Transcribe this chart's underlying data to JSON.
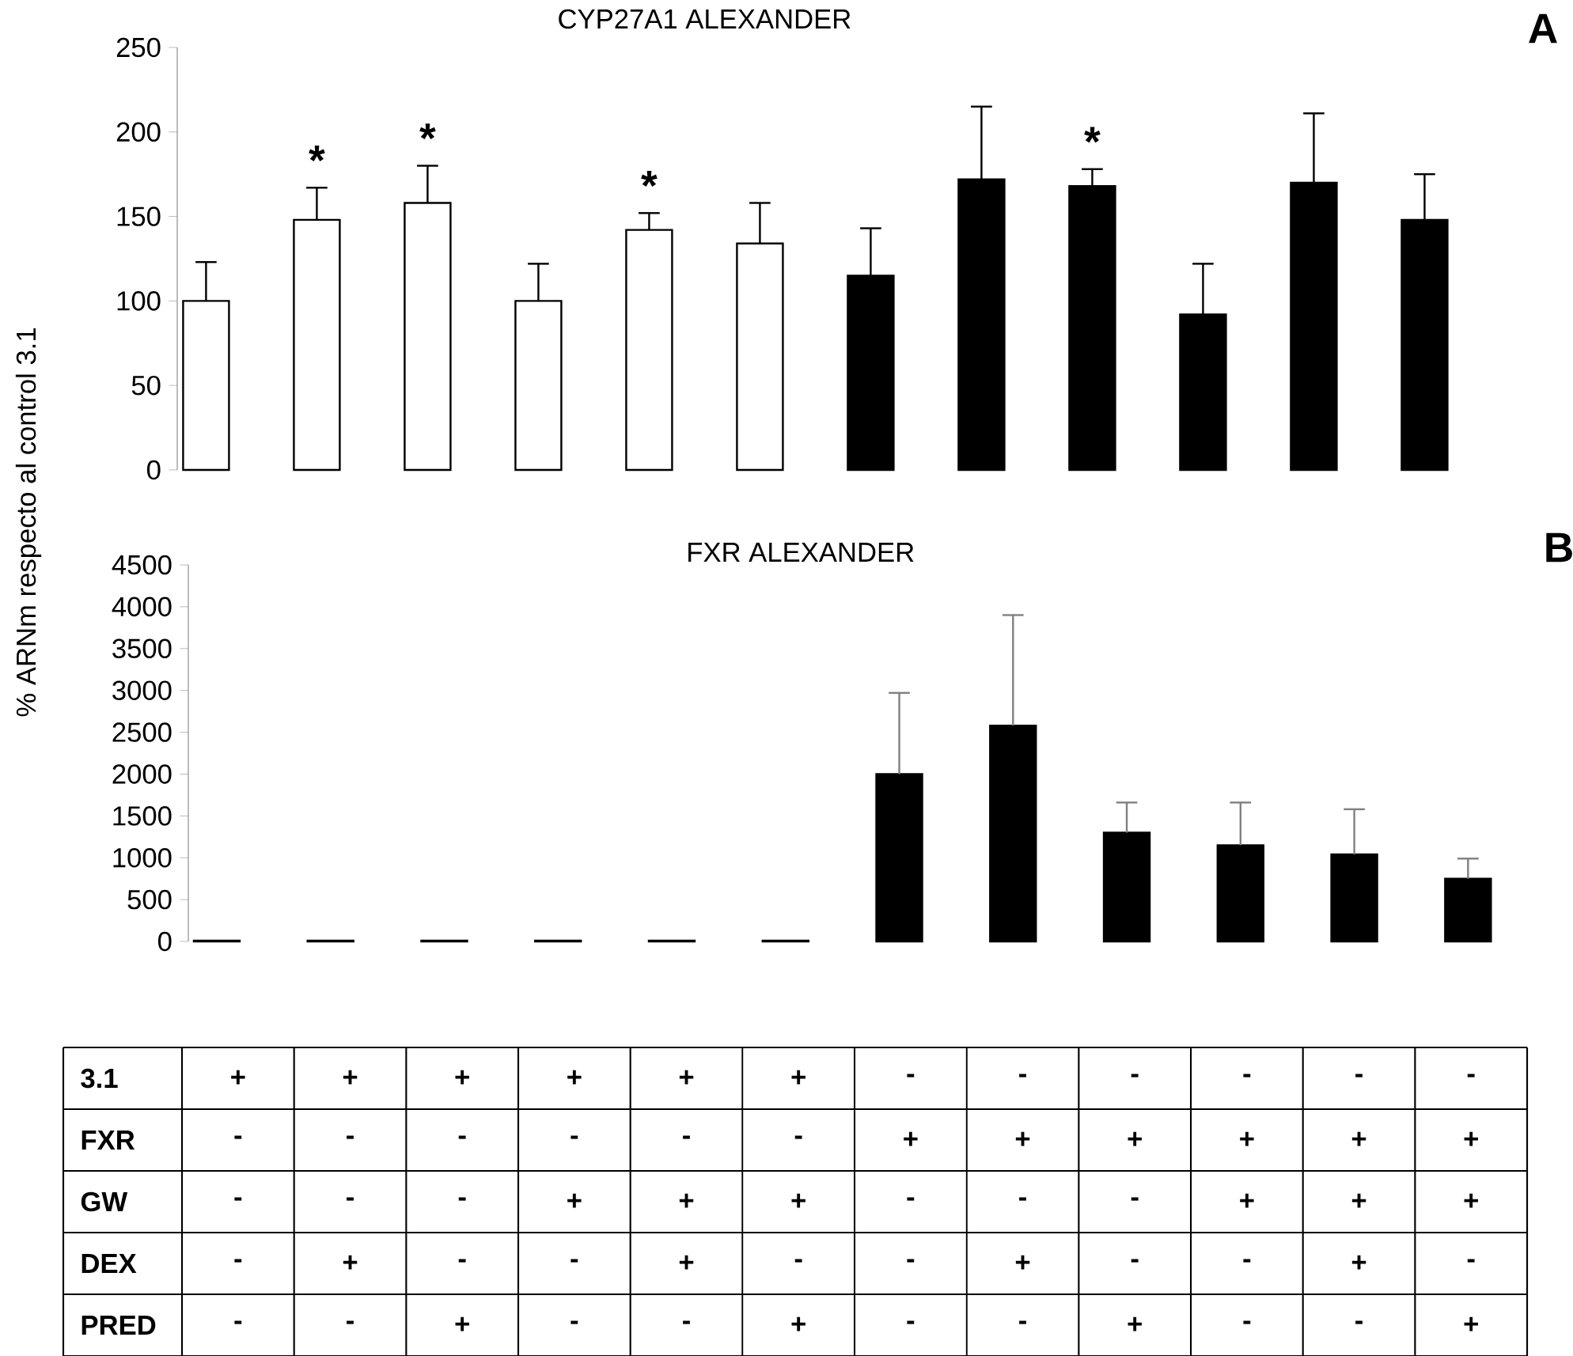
{
  "chart_data": [
    {
      "type": "bar",
      "title": "CYP27A1 ALEXANDER",
      "ylabel": "% ARNm respecto al control 3.1",
      "categories": [
        null,
        null,
        null,
        null,
        null,
        null,
        null,
        null,
        null,
        null,
        null,
        null
      ],
      "values": [
        100,
        148,
        158,
        100,
        142,
        134,
        115,
        172,
        168,
        92,
        170,
        148
      ],
      "errors": [
        [
          100,
          123
        ],
        [
          148,
          167
        ],
        [
          158,
          180
        ],
        [
          100,
          122
        ],
        [
          142,
          152
        ],
        [
          134,
          158
        ],
        [
          115,
          143
        ],
        [
          172,
          215
        ],
        [
          168,
          178
        ],
        [
          92,
          122
        ],
        [
          170,
          211
        ],
        [
          148,
          175
        ]
      ],
      "value_labels": [
        null,
        "*",
        "*",
        null,
        "*",
        null,
        null,
        null,
        "*",
        null,
        null,
        null
      ],
      "colors": [
        "#ffffff",
        "#ffffff",
        "#ffffff",
        "#ffffff",
        "#ffffff",
        "#ffffff",
        "#000000",
        "#000000",
        "#000000",
        "#000000",
        "#000000",
        "#000000"
      ],
      "ylim": [
        0,
        250
      ],
      "yticks": [
        0,
        50,
        100,
        150,
        200,
        250
      ],
      "grid": false,
      "tick_labels": "y",
      "annotations": [
        "A"
      ]
    },
    {
      "type": "bar",
      "title": "FXR ALEXANDER",
      "categories": [
        null,
        null,
        null,
        null,
        null,
        null,
        null,
        null,
        null,
        null,
        null,
        null
      ],
      "values": [
        10,
        10,
        10,
        10,
        10,
        10,
        2000,
        2580,
        1300,
        1150,
        1040,
        750
      ],
      "errors": [
        null,
        null,
        null,
        null,
        null,
        null,
        [
          2000,
          2970
        ],
        [
          2580,
          3900
        ],
        [
          1300,
          1660
        ],
        [
          1150,
          1660
        ],
        [
          1040,
          1580
        ],
        [
          750,
          990
        ]
      ],
      "colors": [
        "#ffffff",
        "#ffffff",
        "#ffffff",
        "#ffffff",
        "#ffffff",
        "#ffffff",
        "#000000",
        "#000000",
        "#000000",
        "#000000",
        "#000000",
        "#000000"
      ],
      "ylim": [
        0,
        4500
      ],
      "yticks": [
        0,
        500,
        1000,
        1500,
        2000,
        2500,
        3000,
        3500,
        4000,
        4500
      ],
      "grid": false,
      "tick_labels": "y",
      "annotations": [
        "B"
      ]
    },
    {
      "type": "other",
      "annotations": [
        "3.1",
        "+",
        "+",
        "+",
        "+",
        "+",
        "+",
        "-",
        "-",
        "-",
        "-",
        "-",
        "-",
        "FXR",
        "-",
        "-",
        "-",
        "-",
        "-",
        "-",
        "+",
        "+",
        "+",
        "+",
        "+",
        "+",
        "GW",
        "-",
        "-",
        "-",
        "+",
        "+",
        "+",
        "-",
        "-",
        "-",
        "+",
        "+",
        "+",
        "DEX",
        "-",
        "+",
        "-",
        "-",
        "+",
        "-",
        "-",
        "+",
        "-",
        "-",
        "+",
        "-",
        "PRED",
        "-",
        "-",
        "+",
        "-",
        "-",
        "+",
        "-",
        "-",
        "+",
        "-",
        "-",
        "+"
      ]
    }
  ]
}
